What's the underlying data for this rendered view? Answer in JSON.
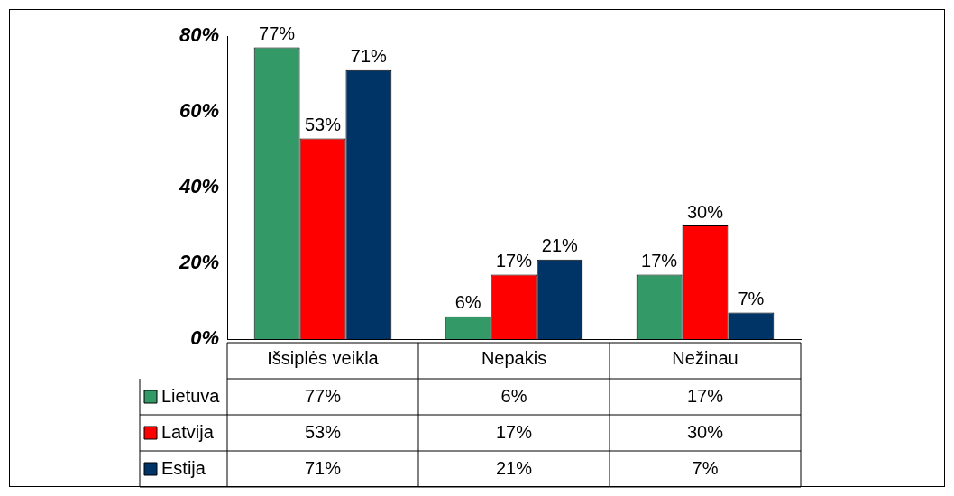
{
  "chart_data": {
    "type": "bar",
    "categories": [
      "Išsiplės veikla",
      "Nepakis",
      "Nežinau"
    ],
    "series": [
      {
        "name": "Lietuva",
        "color": "#339966",
        "values": [
          77,
          6,
          17
        ],
        "value_labels": [
          "77%",
          "6%",
          "17%"
        ]
      },
      {
        "name": "Latvija",
        "color": "#ff0000",
        "values": [
          53,
          17,
          30
        ],
        "value_labels": [
          "53%",
          "17%",
          "30%"
        ]
      },
      {
        "name": "Estija",
        "color": "#003366",
        "values": [
          71,
          21,
          7
        ],
        "value_labels": [
          "71%",
          "21%",
          "7%"
        ]
      }
    ],
    "ylim": [
      0,
      80
    ],
    "yticks": [
      {
        "value": 0,
        "label": "0%"
      },
      {
        "value": 20,
        "label": "20%"
      },
      {
        "value": 40,
        "label": "40%"
      },
      {
        "value": 60,
        "label": "60%"
      },
      {
        "value": 80,
        "label": "80%"
      }
    ],
    "grid": false,
    "legend": "bottom"
  }
}
